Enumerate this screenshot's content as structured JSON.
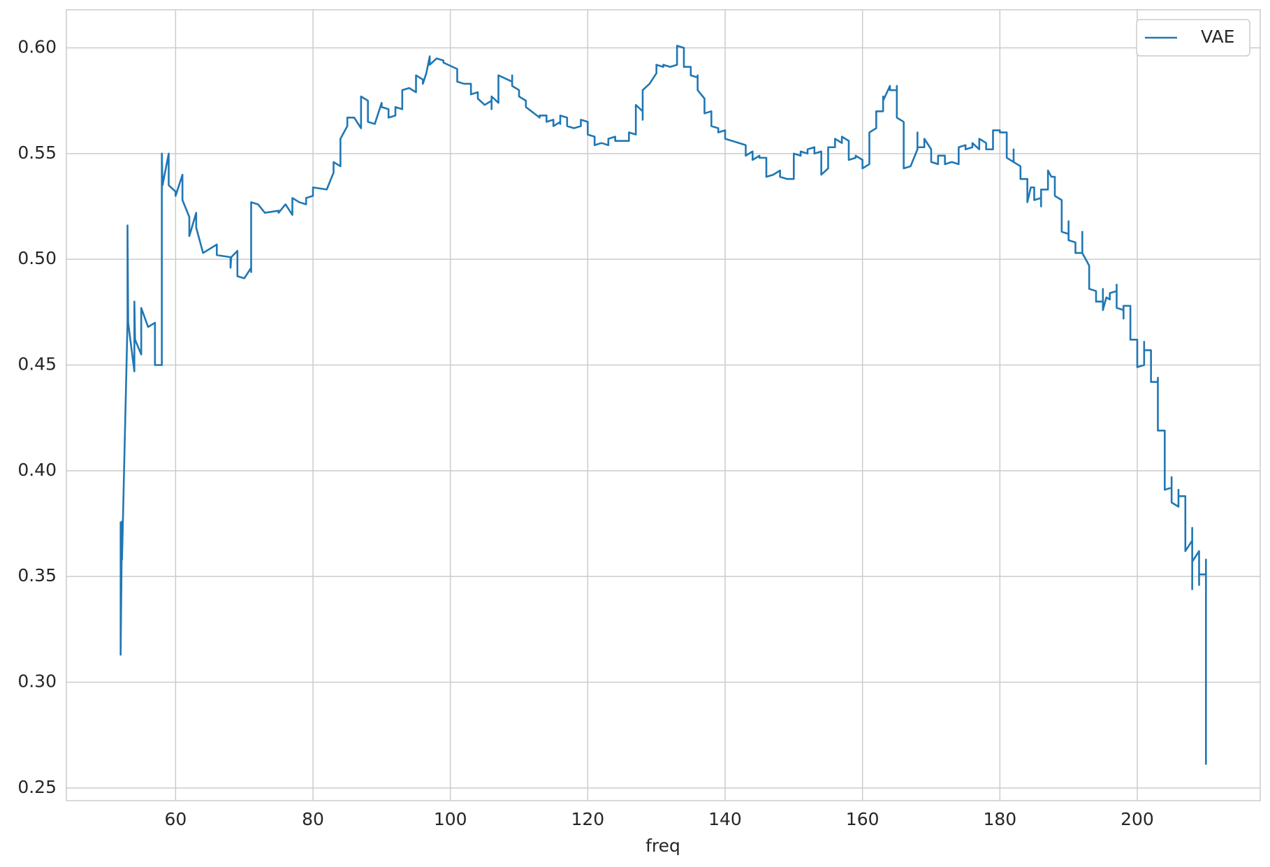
{
  "chart_data": {
    "type": "line",
    "xlabel": "freq",
    "x": [
      52,
      52,
      52.2,
      52.2,
      53,
      53,
      53.1,
      54,
      54,
      54.1,
      55,
      55,
      56,
      57,
      57,
      58,
      58,
      58.1,
      59,
      59,
      60,
      60,
      61,
      61,
      62,
      62,
      63,
      63,
      64,
      66,
      66,
      68,
      68,
      68.1,
      69,
      69,
      70,
      71,
      71,
      71,
      72,
      73,
      75,
      75,
      76,
      77,
      77,
      78,
      79,
      79,
      80,
      80,
      82,
      83,
      83,
      84,
      84,
      85,
      85,
      86,
      87,
      87,
      88,
      88,
      89,
      90,
      90,
      91,
      91,
      92,
      92,
      93,
      93,
      94,
      95,
      95,
      96,
      96,
      96.5,
      97,
      97,
      98,
      99,
      99,
      101,
      101,
      102,
      103,
      103,
      104,
      104,
      105,
      106,
      106,
      106,
      107,
      107,
      109,
      109,
      109,
      110,
      110,
      111,
      111,
      113,
      113,
      114,
      114,
      115,
      115,
      116,
      116,
      116,
      117,
      117,
      118,
      119,
      119,
      120,
      120,
      121,
      121,
      122,
      123,
      123,
      124,
      124,
      125,
      126,
      126,
      127,
      127,
      128,
      128,
      128,
      129,
      130,
      130,
      131,
      131,
      132,
      133,
      133,
      134,
      134,
      135,
      135,
      136,
      136,
      136,
      137,
      137,
      138,
      138,
      139,
      139,
      140,
      140,
      141,
      142,
      143,
      143,
      144,
      144,
      145,
      145,
      146,
      146,
      147,
      148,
      148,
      149,
      150,
      150,
      151,
      151,
      152,
      152,
      153,
      153,
      154,
      154,
      155,
      155,
      156,
      156,
      157,
      157,
      158,
      158,
      159,
      159,
      160,
      160,
      161,
      161,
      162,
      162,
      163,
      163,
      163,
      164,
      164,
      165,
      165,
      165,
      166,
      166,
      167,
      168,
      168,
      168,
      169,
      169,
      170,
      170,
      171,
      171,
      172,
      172,
      173,
      174,
      174,
      175,
      175,
      176,
      176,
      177,
      177,
      178,
      178,
      179,
      179,
      180,
      180,
      181,
      181,
      182,
      182,
      182,
      183,
      183,
      184,
      184,
      184.5,
      185,
      185,
      186,
      186,
      186,
      187,
      187,
      187.5,
      188,
      188,
      189,
      189,
      190,
      190,
      190,
      191,
      191,
      192,
      192,
      192,
      193,
      193,
      194,
      194,
      195,
      195,
      195,
      195.5,
      196,
      196,
      197,
      197,
      197,
      198,
      198,
      198,
      199,
      199,
      200,
      200,
      201,
      201,
      201,
      202,
      202,
      203,
      203,
      203,
      204,
      204,
      205,
      205,
      205,
      206,
      206,
      206,
      207,
      207,
      208,
      208,
      208,
      208,
      209,
      209,
      209,
      210,
      210,
      210
    ],
    "series": [
      {
        "name": "VAE",
        "color": "#1f77b4",
        "values": [
          0.376,
          0.313,
          0.376,
          0.358,
          0.47,
          0.516,
          0.47,
          0.447,
          0.48,
          0.462,
          0.455,
          0.477,
          0.468,
          0.47,
          0.45,
          0.45,
          0.55,
          0.535,
          0.55,
          0.535,
          0.532,
          0.53,
          0.54,
          0.528,
          0.52,
          0.511,
          0.522,
          0.515,
          0.503,
          0.507,
          0.502,
          0.501,
          0.496,
          0.501,
          0.504,
          0.492,
          0.491,
          0.496,
          0.494,
          0.527,
          0.526,
          0.522,
          0.523,
          0.522,
          0.526,
          0.521,
          0.529,
          0.527,
          0.526,
          0.529,
          0.53,
          0.534,
          0.533,
          0.541,
          0.546,
          0.544,
          0.557,
          0.563,
          0.567,
          0.567,
          0.562,
          0.577,
          0.575,
          0.565,
          0.564,
          0.574,
          0.572,
          0.571,
          0.567,
          0.568,
          0.572,
          0.571,
          0.58,
          0.581,
          0.579,
          0.587,
          0.585,
          0.583,
          0.588,
          0.596,
          0.592,
          0.595,
          0.594,
          0.593,
          0.59,
          0.584,
          0.583,
          0.583,
          0.578,
          0.579,
          0.576,
          0.573,
          0.575,
          0.571,
          0.577,
          0.574,
          0.587,
          0.584,
          0.587,
          0.582,
          0.58,
          0.577,
          0.575,
          0.572,
          0.567,
          0.568,
          0.568,
          0.565,
          0.566,
          0.563,
          0.565,
          0.564,
          0.568,
          0.567,
          0.563,
          0.562,
          0.563,
          0.566,
          0.565,
          0.559,
          0.558,
          0.554,
          0.555,
          0.554,
          0.557,
          0.558,
          0.556,
          0.556,
          0.556,
          0.56,
          0.559,
          0.573,
          0.57,
          0.566,
          0.58,
          0.583,
          0.588,
          0.592,
          0.591,
          0.592,
          0.591,
          0.592,
          0.601,
          0.6,
          0.591,
          0.591,
          0.587,
          0.586,
          0.587,
          0.58,
          0.576,
          0.569,
          0.57,
          0.563,
          0.562,
          0.56,
          0.561,
          0.557,
          0.556,
          0.555,
          0.554,
          0.549,
          0.551,
          0.547,
          0.549,
          0.548,
          0.548,
          0.539,
          0.54,
          0.542,
          0.539,
          0.538,
          0.538,
          0.55,
          0.549,
          0.551,
          0.55,
          0.552,
          0.553,
          0.55,
          0.551,
          0.54,
          0.543,
          0.553,
          0.553,
          0.557,
          0.555,
          0.558,
          0.556,
          0.547,
          0.548,
          0.549,
          0.547,
          0.543,
          0.545,
          0.56,
          0.562,
          0.57,
          0.57,
          0.577,
          0.575,
          0.582,
          0.58,
          0.58,
          0.582,
          0.567,
          0.565,
          0.543,
          0.544,
          0.552,
          0.56,
          0.553,
          0.553,
          0.557,
          0.552,
          0.546,
          0.545,
          0.549,
          0.549,
          0.545,
          0.546,
          0.545,
          0.553,
          0.554,
          0.552,
          0.553,
          0.555,
          0.552,
          0.557,
          0.555,
          0.552,
          0.552,
          0.561,
          0.561,
          0.56,
          0.56,
          0.548,
          0.546,
          0.552,
          0.546,
          0.544,
          0.538,
          0.538,
          0.527,
          0.534,
          0.534,
          0.528,
          0.529,
          0.525,
          0.533,
          0.533,
          0.542,
          0.539,
          0.539,
          0.53,
          0.528,
          0.513,
          0.512,
          0.518,
          0.509,
          0.508,
          0.503,
          0.503,
          0.513,
          0.503,
          0.497,
          0.486,
          0.485,
          0.48,
          0.48,
          0.486,
          0.476,
          0.482,
          0.481,
          0.484,
          0.485,
          0.488,
          0.477,
          0.476,
          0.472,
          0.478,
          0.478,
          0.462,
          0.462,
          0.449,
          0.45,
          0.461,
          0.457,
          0.457,
          0.442,
          0.442,
          0.444,
          0.419,
          0.419,
          0.391,
          0.392,
          0.397,
          0.385,
          0.383,
          0.391,
          0.388,
          0.388,
          0.362,
          0.367,
          0.373,
          0.344,
          0.357,
          0.362,
          0.346,
          0.351,
          0.351,
          0.358,
          0.261
        ]
      }
    ],
    "xlim": [
      44.1,
      217.9
    ],
    "xticks": [
      60,
      80,
      100,
      120,
      140,
      160,
      180,
      200
    ],
    "ylim": [
      0.244,
      0.618
    ],
    "yticks": [
      0.25,
      {
        "value": 0.3,
        "label": "0.30"
      },
      0.35,
      {
        "value": 0.4,
        "label": "0.40"
      },
      0.45,
      {
        "value": 0.5,
        "label": "0.50"
      },
      0.55,
      {
        "value": 0.6,
        "label": "0.60"
      }
    ],
    "grid": true,
    "legend": "upper right"
  }
}
